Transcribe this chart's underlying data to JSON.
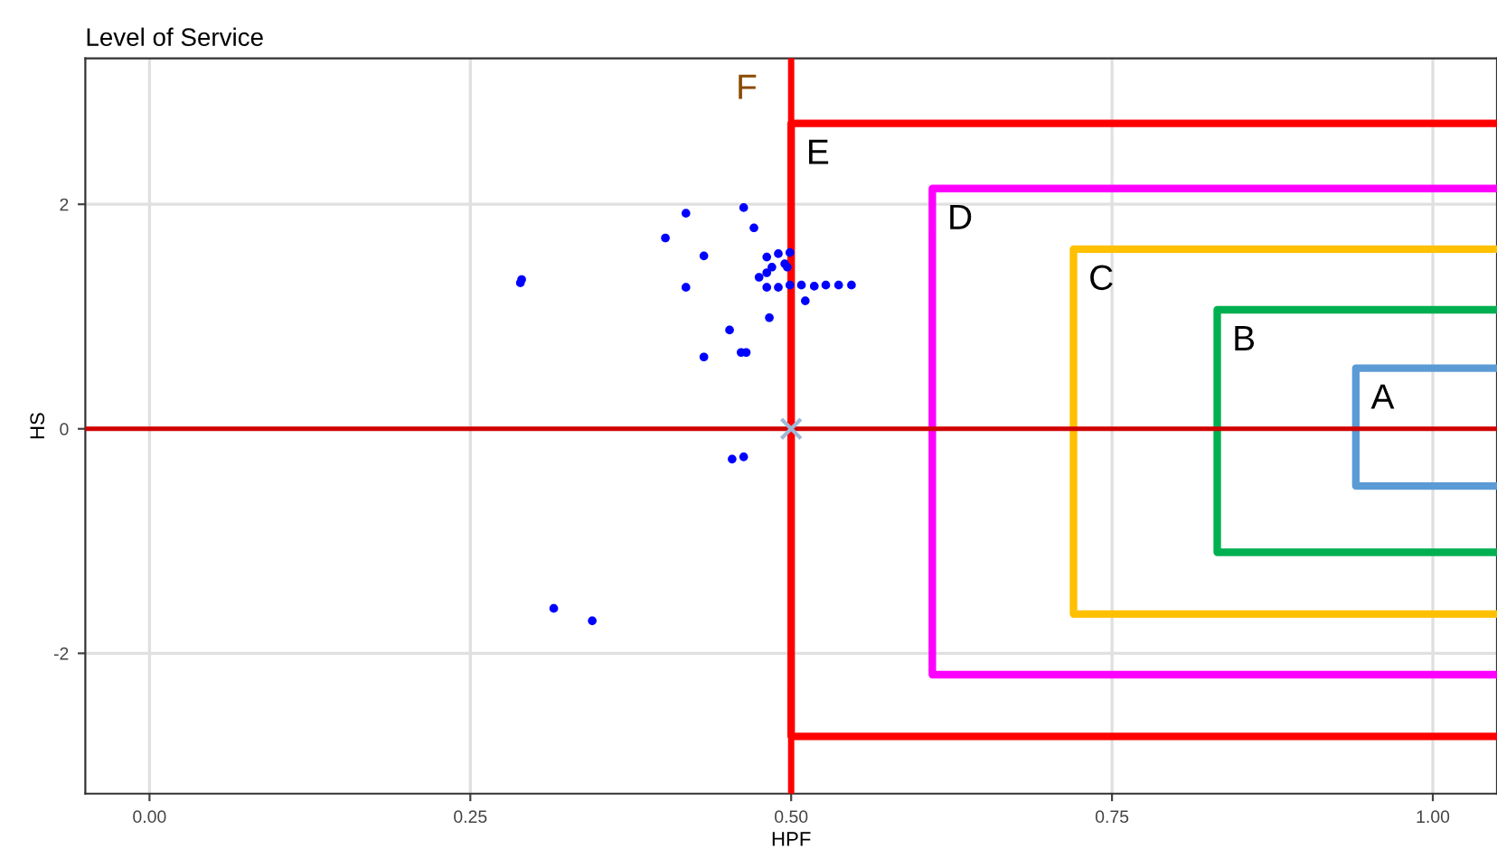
{
  "chart_data": {
    "type": "scatter",
    "title": "Level of Service",
    "xlabel": "HPF",
    "ylabel": "HS",
    "xlim": [
      -0.05,
      1.05
    ],
    "ylim": [
      -3.25,
      3.3
    ],
    "xticks": [
      {
        "value": 0,
        "label": "0.00"
      },
      {
        "value": 0.25,
        "label": "0.25"
      },
      {
        "value": 0.5,
        "label": "0.50"
      },
      {
        "value": 0.75,
        "label": "0.75"
      },
      {
        "value": 1,
        "label": "1.00"
      }
    ],
    "yticks": [
      -2,
      0,
      2
    ],
    "grid": true,
    "marker": "circle",
    "series": [
      {
        "color": "#0000ff",
        "x": [
          0.289,
          0.29,
          0.418,
          0.463,
          0.471,
          0.402,
          0.432,
          0.418,
          0.452,
          0.483,
          0.511,
          0.432,
          0.461,
          0.465,
          0.454,
          0.463,
          0.481,
          0.49,
          0.499,
          0.495,
          0.485,
          0.481,
          0.475,
          0.481,
          0.49,
          0.499,
          0.508,
          0.518,
          0.527,
          0.537,
          0.547,
          0.497,
          0.315,
          0.345
        ],
        "values": [
          1.3,
          1.33,
          1.92,
          1.97,
          1.79,
          1.7,
          1.54,
          1.26,
          0.88,
          0.99,
          1.14,
          0.64,
          0.68,
          0.68,
          -0.27,
          -0.25,
          1.53,
          1.56,
          1.57,
          1.47,
          1.44,
          1.39,
          1.35,
          1.26,
          1.26,
          1.28,
          1.28,
          1.27,
          1.28,
          1.28,
          1.28,
          1.44,
          -1.6,
          -1.71
        ]
      },
      {
        "type": "scatter",
        "color": "#a0b8d8",
        "marker": "cross",
        "x": [
          0.5
        ],
        "values": [
          0
        ]
      },
      {
        "type": "line",
        "name": "E",
        "color": "#ff0000",
        "marker": "none",
        "x": [
          1.05,
          0.5,
          0.5,
          1.05
        ],
        "values": [
          2.72,
          2.72,
          -2.74,
          -2.74
        ]
      },
      {
        "type": "line",
        "name": "D",
        "color": "#ff00ff",
        "marker": "none",
        "x": [
          1.05,
          0.61,
          0.61,
          1.05
        ],
        "values": [
          2.14,
          2.14,
          -2.19,
          -2.19
        ]
      },
      {
        "type": "line",
        "name": "C",
        "color": "#ffc000",
        "marker": "none",
        "x": [
          1.05,
          0.72,
          0.72,
          1.05
        ],
        "values": [
          1.6,
          1.6,
          -1.65,
          -1.65
        ]
      },
      {
        "type": "line",
        "name": "B",
        "color": "#00b050",
        "marker": "none",
        "x": [
          1.05,
          0.832,
          0.832,
          1.05
        ],
        "values": [
          1.06,
          1.06,
          -1.1,
          -1.1
        ]
      },
      {
        "type": "line",
        "name": "A",
        "color": "#5b9bd5",
        "marker": "none",
        "x": [
          1.05,
          0.94,
          0.94,
          1.05
        ],
        "values": [
          0.54,
          0.54,
          -0.51,
          -0.51
        ]
      }
    ],
    "ref_lines": [
      {
        "axis": "x",
        "value": 0.5,
        "label": "F",
        "color": "#ff0000"
      },
      {
        "axis": "y",
        "value": 0,
        "color": "#d00000"
      }
    ]
  }
}
